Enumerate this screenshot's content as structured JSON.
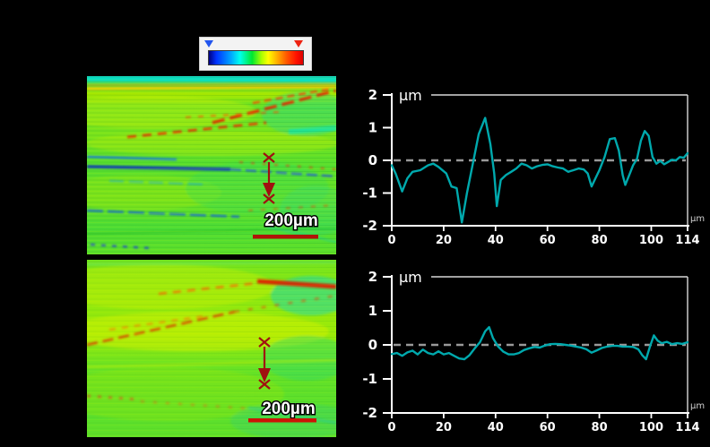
{
  "canvas": {
    "background": "#000000"
  },
  "colorbar": {
    "background": "#f3f3f3",
    "min_marker_color": "#2255ee",
    "max_marker_color": "#ee2211",
    "gradient_stops": [
      "#000080",
      "#0033ff",
      "#00aaff",
      "#00ffee",
      "#00e830",
      "#aaff00",
      "#ffff00",
      "#ffaa00",
      "#ff5500",
      "#ff1100",
      "#dd0000"
    ]
  },
  "images": [
    {
      "label": "surface-height-map-top",
      "scale_label": "200µm",
      "scalebar_color": "#b01408",
      "marker_color": "#a01010"
    },
    {
      "label": "surface-height-map-bottom",
      "scale_label": "200µm",
      "scalebar_color": "#cc1405",
      "marker_color": "#a01010"
    }
  ],
  "chart_data": [
    {
      "type": "line",
      "name": "profile-top",
      "title": "",
      "unit_label": "µm",
      "x_unit_label": "µm",
      "xlabel": "",
      "ylabel": "µm",
      "xlim": [
        0,
        114
      ],
      "ylim": [
        -2,
        2
      ],
      "xticks": [
        0,
        20,
        40,
        60,
        80,
        100,
        114
      ],
      "yticks": [
        2,
        1,
        0,
        -1,
        -2
      ],
      "zero_line": true,
      "grid": false,
      "legend": "none",
      "line_color": "#00a9ad",
      "axis_color": "#ffffff",
      "zero_line_color": "#999999",
      "x": [
        0,
        1.5,
        4,
        6,
        8,
        11,
        14,
        16,
        18,
        21,
        23,
        25,
        27,
        29,
        31.5,
        33.5,
        36,
        38,
        39.5,
        40.5,
        42,
        44,
        46,
        48,
        50,
        52,
        54,
        56,
        58,
        60,
        62,
        64,
        66,
        68,
        70,
        72,
        74,
        75.5,
        77,
        78.5,
        80,
        82,
        84,
        86,
        87.5,
        89,
        90,
        91.5,
        93,
        94.5,
        96,
        97.5,
        99,
        100.5,
        102,
        103.5,
        105,
        106.5,
        108,
        109.5,
        111,
        112.5,
        114
      ],
      "y": [
        -0.15,
        -0.4,
        -0.95,
        -0.55,
        -0.35,
        -0.3,
        -0.15,
        -0.1,
        -0.2,
        -0.4,
        -0.8,
        -0.85,
        -1.9,
        -1.0,
        0,
        0.8,
        1.3,
        0.5,
        -0.4,
        -1.4,
        -0.6,
        -0.45,
        -0.35,
        -0.25,
        -0.1,
        -0.15,
        -0.25,
        -0.18,
        -0.14,
        -0.12,
        -0.18,
        -0.22,
        -0.25,
        -0.35,
        -0.3,
        -0.25,
        -0.28,
        -0.4,
        -0.8,
        -0.55,
        -0.3,
        0.1,
        0.65,
        0.68,
        0.3,
        -0.45,
        -0.75,
        -0.45,
        -0.15,
        0.05,
        0.6,
        0.9,
        0.75,
        0.1,
        -0.1,
        -0.02,
        -0.12,
        -0.05,
        0.02,
        0,
        0.1,
        0.08,
        0.22
      ]
    },
    {
      "type": "line",
      "name": "profile-bottom",
      "title": "",
      "unit_label": "µm",
      "x_unit_label": "µm",
      "xlabel": "",
      "ylabel": "µm",
      "xlim": [
        0,
        114
      ],
      "ylim": [
        -2,
        2
      ],
      "xticks": [
        0,
        20,
        40,
        60,
        80,
        100,
        114
      ],
      "yticks": [
        2,
        1,
        0,
        -1,
        -2
      ],
      "zero_line": true,
      "grid": false,
      "legend": "none",
      "line_color": "#00a9ad",
      "axis_color": "#ffffff",
      "zero_line_color": "#999999",
      "x": [
        0,
        2,
        4,
        6,
        8,
        10,
        12,
        14,
        16,
        18,
        20,
        22,
        24,
        26,
        28,
        30,
        32,
        34,
        36,
        37.5,
        39,
        41,
        43,
        45,
        47,
        49,
        51,
        53,
        55,
        57,
        59,
        61,
        63,
        65,
        67,
        69,
        71,
        73,
        75,
        77,
        79,
        81,
        83,
        85,
        87,
        89,
        91,
        93,
        95,
        96.5,
        98,
        99.5,
        101,
        102.5,
        104,
        106,
        108,
        110,
        112,
        114
      ],
      "y": [
        -0.27,
        -0.24,
        -0.32,
        -0.22,
        -0.17,
        -0.28,
        -0.14,
        -0.24,
        -0.28,
        -0.19,
        -0.28,
        -0.24,
        -0.32,
        -0.4,
        -0.42,
        -0.3,
        -0.1,
        0.08,
        0.4,
        0.52,
        0.2,
        -0.05,
        -0.2,
        -0.28,
        -0.28,
        -0.24,
        -0.15,
        -0.1,
        -0.06,
        -0.08,
        -0.02,
        0.02,
        0.03,
        0.02,
        0,
        -0.02,
        -0.05,
        -0.08,
        -0.13,
        -0.23,
        -0.16,
        -0.09,
        -0.05,
        -0.03,
        -0.03,
        -0.05,
        -0.05,
        -0.06,
        -0.13,
        -0.3,
        -0.42,
        -0.05,
        0.28,
        0.12,
        0.05,
        0.09,
        0.02,
        0.05,
        0.03,
        0.08
      ]
    }
  ]
}
